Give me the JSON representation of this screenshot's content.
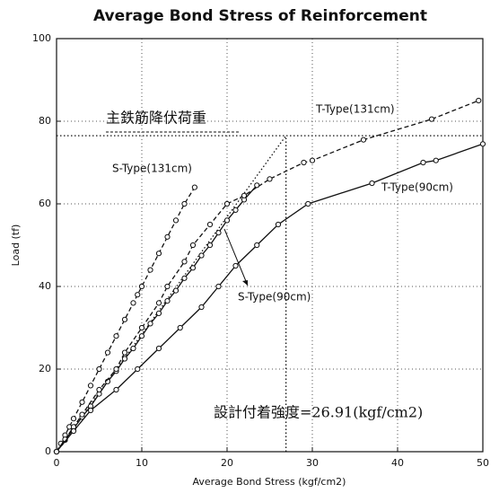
{
  "chart_data": {
    "type": "line",
    "title": "Average Bond Stress of Reinforcement",
    "x_label": "Average Bond Stress (kgf/cm2)",
    "y_label": "Load (tf)",
    "xlim": [
      0,
      50
    ],
    "xticks": [
      0,
      10,
      20,
      30,
      40,
      50
    ],
    "ylim": [
      0,
      100
    ],
    "yticks": [
      0,
      20,
      40,
      60,
      80,
      100
    ],
    "grid": true,
    "series": [
      {
        "name": "S-Type(131cm)",
        "color": "#111111",
        "dash": "dashed",
        "marker": "circle",
        "x": [
          0,
          0.5,
          1,
          1.5,
          2,
          3,
          4,
          5,
          6,
          7,
          8,
          9,
          9.5,
          10,
          11,
          12,
          13,
          14,
          15,
          16.2
        ],
        "values": [
          0,
          2,
          4,
          6,
          8,
          12,
          16,
          20,
          24,
          28,
          32,
          36,
          38,
          40,
          44,
          48,
          52,
          56,
          60,
          64
        ]
      },
      {
        "name": "S-Type(90cm)",
        "color": "#111111",
        "dash": "solid",
        "marker": "circle",
        "x": [
          0,
          1,
          2,
          3,
          4,
          5,
          6,
          7,
          8,
          9,
          10,
          11,
          12,
          13,
          14,
          15,
          16,
          17,
          18,
          19,
          20,
          21,
          22,
          23.5
        ],
        "values": [
          0,
          2.8,
          5.6,
          8.4,
          11,
          14,
          17,
          19.5,
          22.5,
          25,
          28,
          31,
          33.5,
          36.5,
          39,
          42,
          44.5,
          47.5,
          50,
          53,
          56,
          58.5,
          61,
          64.5
        ]
      },
      {
        "name": "T-Type(131cm)",
        "color": "#111111",
        "dash": "dashed",
        "marker": "circle",
        "x": [
          0,
          1,
          2,
          3,
          5,
          7,
          8,
          10,
          12,
          13,
          15,
          16,
          18,
          20,
          22,
          25,
          29,
          30,
          36,
          44,
          49.5
        ],
        "values": [
          0,
          3,
          6,
          9,
          15,
          20,
          24,
          30,
          36,
          40,
          46,
          50,
          55,
          60,
          62,
          66,
          70,
          70.5,
          75.5,
          80.5,
          85
        ]
      },
      {
        "name": "T-Type(90cm)",
        "color": "#111111",
        "dash": "solid",
        "marker": "circle",
        "x": [
          0,
          2,
          4,
          7,
          9.5,
          12,
          14.5,
          17,
          19,
          21,
          23.5,
          26,
          29.5,
          37,
          43,
          44.5,
          50
        ],
        "values": [
          0,
          5,
          10,
          15,
          20,
          25,
          30,
          35,
          40,
          45,
          50,
          55,
          60,
          65,
          70,
          70.5,
          74.5
        ]
      }
    ],
    "reference_lines": [
      {
        "x": [
          0,
          50
        ],
        "values": [
          76.5,
          76.5
        ]
      },
      {
        "x": [
          26.91,
          26.91
        ],
        "values": [
          0,
          76.5
        ]
      },
      {
        "x": [
          0,
          26.91
        ],
        "values": [
          0,
          76.5
        ]
      }
    ],
    "annotations": [
      "主鉄筋降伏荷重",
      "設計付着強度=26.91(kgf/cm2)"
    ]
  }
}
